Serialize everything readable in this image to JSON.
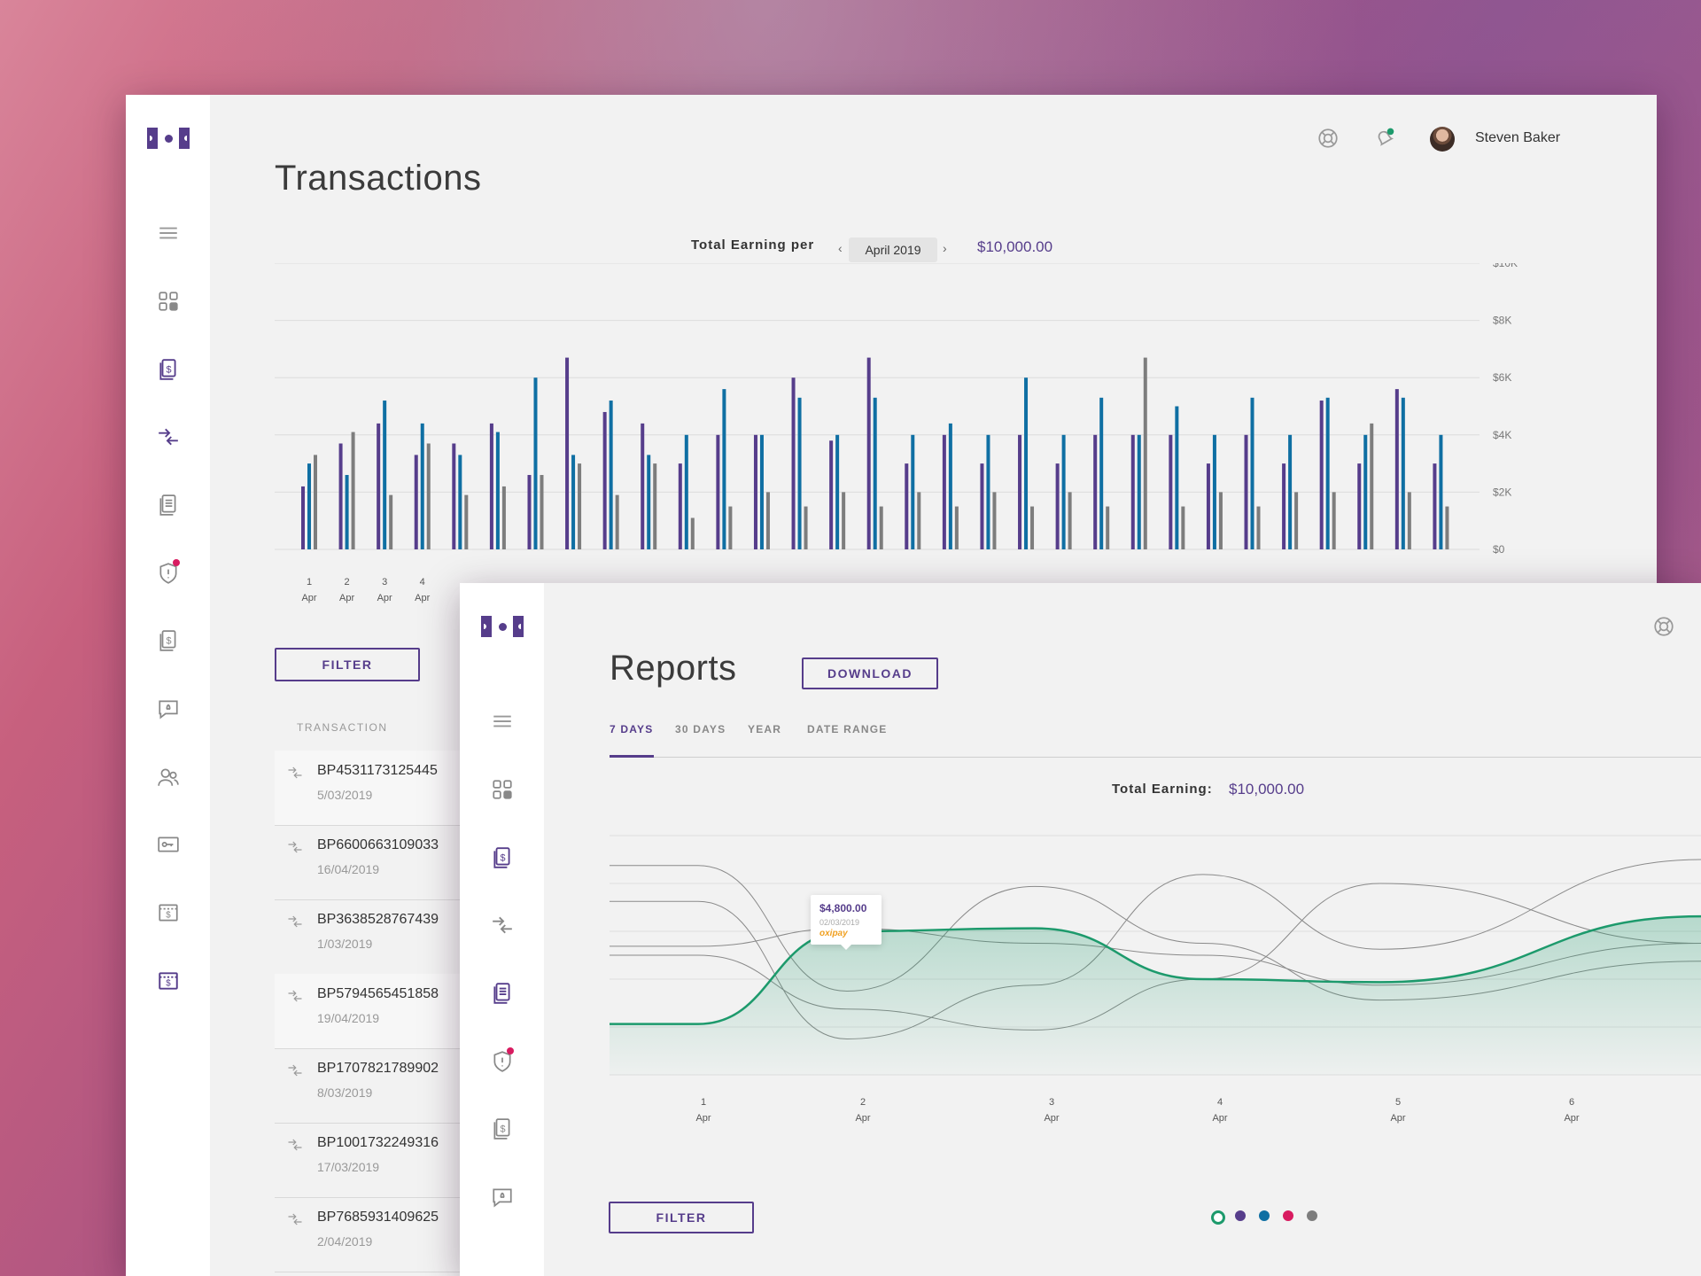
{
  "colors": {
    "brand_purple": "#563d8b",
    "series_blue": "#0f6fa3",
    "series_gray": "#7d7d7d",
    "series_green": "#1d9a6c",
    "alert_pink": "#d81b60"
  },
  "transactions_window": {
    "title": "Transactions",
    "user_name": "Steven Baker",
    "earning_label": "Total Earning per",
    "month": "April 2019",
    "earning_value": "$10,000.00",
    "filter_label": "FILTER",
    "list_header": "TRANSACTION",
    "transactions": [
      {
        "id": "BP4531173125445",
        "date": "5/03/2019"
      },
      {
        "id": "BP6600663109033",
        "date": "16/04/2019"
      },
      {
        "id": "BP3638528767439",
        "date": "1/03/2019"
      },
      {
        "id": "BP5794565451858",
        "date": "19/04/2019"
      },
      {
        "id": "BP1707821789902",
        "date": "8/03/2019"
      },
      {
        "id": "BP1001732249316",
        "date": "17/03/2019"
      },
      {
        "id": "BP7685931409625",
        "date": "2/04/2019"
      }
    ],
    "sidebar_icons": [
      "menu-icon",
      "dashboard-icon",
      "invoice-icon",
      "transfer-icon",
      "documents-icon",
      "shield-alert-icon",
      "receipt-icon",
      "chat-bell-icon",
      "users-icon",
      "key-card-icon",
      "dollar-screen-icon",
      "dollar-active-icon"
    ]
  },
  "reports_window": {
    "title": "Reports",
    "download_label": "DOWNLOAD",
    "tabs": [
      "7 DAYS",
      "30 DAYS",
      "YEAR",
      "DATE RANGE"
    ],
    "active_tab": 0,
    "earning_label": "Total Earning:",
    "earning_value": "$10,000.00",
    "filter_label": "FILTER",
    "tooltip": {
      "value": "$4,800.00",
      "date": "02/03/2019",
      "brand": "oxipay"
    },
    "legend_colors": [
      "#1d9a6c",
      "#563d8b",
      "#0f6fa3",
      "#d81b60",
      "#7d7d7d"
    ]
  },
  "chart_data": [
    {
      "type": "bar",
      "title": "",
      "ylim": [
        0,
        10000
      ],
      "y_ticks": [
        "$0",
        "$2K",
        "$4K",
        "$6K",
        "$8K",
        "$10K"
      ],
      "y_tick_values": [
        0,
        2000,
        4000,
        6000,
        8000,
        10000
      ],
      "x_tick_labels": [
        {
          "day": "1",
          "month": "Apr"
        },
        {
          "day": "2",
          "month": "Apr"
        },
        {
          "day": "3",
          "month": "Apr"
        },
        {
          "day": "4",
          "month": "Apr"
        }
      ],
      "grid": true,
      "series": [
        {
          "color": "#563d8b",
          "values": [
            2200,
            3700,
            4400,
            3300,
            3700,
            4400,
            2600,
            6700,
            4800,
            4400,
            3000,
            4000,
            4000,
            6000,
            3800,
            6700,
            3000,
            4000,
            3000,
            4000,
            3000,
            4000,
            4000,
            4000,
            3000,
            4000,
            3000,
            5200,
            3000,
            5600,
            3000
          ]
        },
        {
          "color": "#0f6fa3",
          "values": [
            3000,
            2600,
            5200,
            4400,
            3300,
            4100,
            6000,
            3300,
            5200,
            3300,
            4000,
            5600,
            4000,
            5300,
            4000,
            5300,
            4000,
            4400,
            4000,
            6000,
            4000,
            5300,
            4000,
            5000,
            4000,
            5300,
            4000,
            5300,
            4000,
            5300,
            4000
          ]
        },
        {
          "color": "#7d7d7d",
          "values": [
            3300,
            4100,
            1900,
            3700,
            1900,
            2200,
            2600,
            3000,
            1900,
            3000,
            1100,
            1500,
            2000,
            1500,
            2000,
            1500,
            2000,
            1500,
            2000,
            1500,
            2000,
            1500,
            6700,
            1500,
            2000,
            1500,
            2000,
            2000,
            4400,
            2000,
            1500
          ]
        }
      ]
    },
    {
      "type": "line",
      "title": "",
      "x_tick_labels": [
        {
          "day": "1",
          "month": "Apr"
        },
        {
          "day": "2",
          "month": "Apr"
        },
        {
          "day": "3",
          "month": "Apr"
        },
        {
          "day": "4",
          "month": "Apr"
        },
        {
          "day": "5",
          "month": "Apr"
        },
        {
          "day": "6",
          "month": "Apr"
        }
      ],
      "grid": true,
      "highlight_point": {
        "x": "2 Apr",
        "y": 4800
      },
      "series": [
        {
          "color": "#1d9a6c",
          "highlighted": true,
          "values": [
            1700,
            1700,
            4800,
            4900,
            3200,
            3100,
            5300
          ]
        },
        {
          "color": "#8a8a8a",
          "values": [
            7000,
            7000,
            2800,
            6300,
            4400,
            2500,
            3800
          ]
        },
        {
          "color": "#8a8a8a",
          "values": [
            5800,
            5800,
            1200,
            3000,
            6700,
            4200,
            7200
          ]
        },
        {
          "color": "#8a8a8a",
          "values": [
            4300,
            4300,
            4900,
            4400,
            4000,
            3000,
            4400
          ]
        },
        {
          "color": "#8a8a8a",
          "values": [
            4000,
            4000,
            2200,
            1500,
            3200,
            6400,
            4400
          ]
        }
      ]
    }
  ]
}
